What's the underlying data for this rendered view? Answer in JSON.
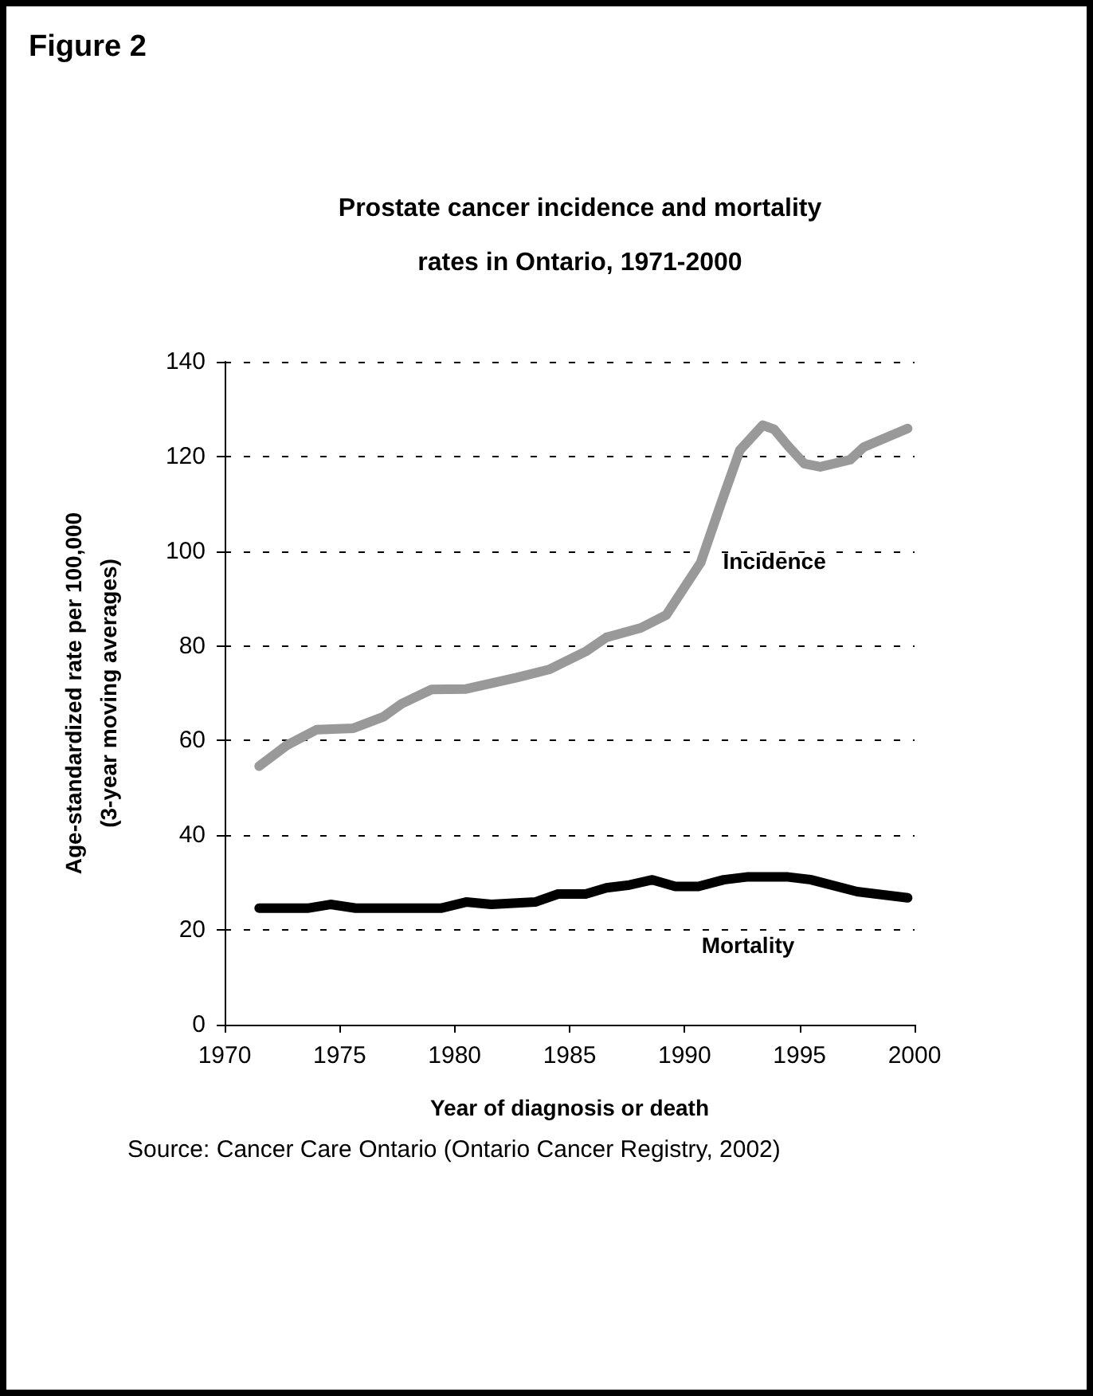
{
  "chart_data": {
    "type": "line",
    "title": "Prostate cancer incidence and mortality rates in Ontario, 1971-2000",
    "xlabel": "Year of diagnosis or death",
    "ylabel": "Age-standardized rate per 100,000\n(3-year moving averages)",
    "annotations": [
      "Figure 2",
      "Source: Cancer Care Ontario (Ontario Cancer Registry, 2002)"
    ],
    "series": [
      {
        "name": "Incidence",
        "color": "#999999",
        "x": [
          1971.5,
          1972.7,
          1974.0,
          1975.6,
          1976.9,
          1977.7,
          1979.0,
          1980.5,
          1982.7,
          1984.1,
          1985.7,
          1986.6,
          1988.1,
          1989.2,
          1990.7,
          1991.6,
          1992.4,
          1993.4,
          1993.9,
          1994.5,
          1995.2,
          1995.9,
          1997.2,
          1997.8,
          1999.7
        ],
        "values": [
          54.6,
          59,
          62.3,
          62.6,
          65,
          67.8,
          70.8,
          70.9,
          73.3,
          75,
          78.8,
          81.8,
          83.8,
          86.5,
          97.6,
          110.3,
          121.3,
          126.6,
          125.7,
          122.2,
          118.5,
          117.8,
          119.3,
          122,
          125.9
        ]
      },
      {
        "name": "Mortality",
        "color": "#000000",
        "x": [
          1971.5,
          1973.6,
          1974.6,
          1975.7,
          1979.4,
          1980.5,
          1981.6,
          1983.5,
          1984.5,
          1985.7,
          1986.6,
          1987.6,
          1988.6,
          1989.6,
          1990.6,
          1991.7,
          1992.7,
          1994.5,
          1995.5,
          1997.5,
          1999.7
        ],
        "values": [
          24.6,
          24.6,
          25.4,
          24.6,
          24.6,
          25.9,
          25.4,
          25.9,
          27.6,
          27.6,
          28.9,
          29.5,
          30.6,
          29.2,
          29.2,
          30.6,
          31.2,
          31.2,
          30.6,
          28.1,
          26.8
        ]
      }
    ],
    "xlim": [
      1970,
      2000
    ],
    "xticks": [
      1970,
      1975,
      1980,
      1985,
      1990,
      1995,
      2000
    ],
    "ylim": [
      0,
      140
    ],
    "yticks": [
      0,
      20,
      40,
      60,
      80,
      100,
      120,
      140
    ],
    "grid": "y",
    "legend": false,
    "marker": "none",
    "line_style": "solid"
  }
}
